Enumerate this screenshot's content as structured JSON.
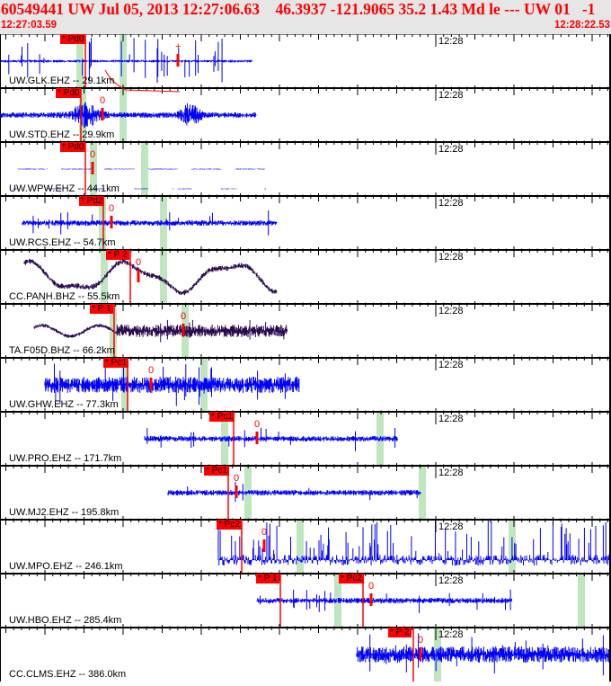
{
  "header": {
    "title": "60549441 UW Jul 05, 2013 12:27:06.63    46.3937 -121.9065 35.2 1.43 Md le --- UW 01   -1",
    "start_time": "12:27:03.59",
    "end_time": "12:28:22.53"
  },
  "time_marker": "12:28",
  "colors": {
    "trace_blue": "#0000ff",
    "trace_purple": "#2a0a50",
    "pick": "#ff0000",
    "band": "#bfe6bf"
  },
  "channels": [
    {
      "label": "UW.GLK.EHZ -- 29.1km",
      "picks": [
        "* Pd0"
      ],
      "marker": "+"
    },
    {
      "label": "UW.STD.EHZ -- 29.9km",
      "picks": [
        "* Pd0"
      ],
      "marker": "0"
    },
    {
      "label": "UW.WPW.EHZ -- 44.1km",
      "picks": [
        "* Pd0"
      ],
      "marker": "0"
    },
    {
      "label": "UW.RCS.EHZ -- 54.7km",
      "picks": [
        "* Pd2"
      ],
      "marker": "0"
    },
    {
      "label": "CC.PANH.BHZ -- 55.5km",
      "picks": [
        "* P 2"
      ],
      "marker": "0"
    },
    {
      "label": "TA.F05D.BHZ -- 66.2km",
      "picks": [
        "* P 1"
      ],
      "marker": "0"
    },
    {
      "label": "UW.GHW.EHZ -- 77.3km",
      "picks": [
        "* Pc1"
      ],
      "marker": "0"
    },
    {
      "label": "UW.PRO.EHZ -- 171.7km",
      "picks": [
        "* Pc1"
      ],
      "marker": "0"
    },
    {
      "label": "UW.MJ2.EHZ -- 195.8km",
      "picks": [
        "* Pc1"
      ],
      "marker": "0"
    },
    {
      "label": "UW.MPO.EHZ -- 246.1km",
      "picks": [
        "* Pc2"
      ],
      "marker": "0"
    },
    {
      "label": "UW.HBO.EHZ -- 285.4km",
      "picks": [
        "* P 1",
        "* Pc2"
      ],
      "marker": "0"
    },
    {
      "label": "CC.CLMS.EHZ -- 386.0km",
      "picks": [
        "* P 2"
      ],
      "marker": "0"
    }
  ]
}
